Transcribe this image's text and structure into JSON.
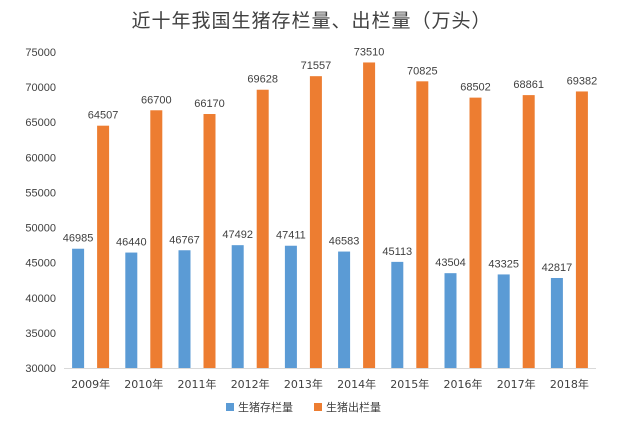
{
  "chart_data": {
    "type": "bar",
    "title": "近十年我国生猪存栏量、出栏量（万头）",
    "categories": [
      "2009年",
      "2010年",
      "2011年",
      "2012年",
      "2013年",
      "2014年",
      "2015年",
      "2016年",
      "2017年",
      "2018年"
    ],
    "series": [
      {
        "name": "生猪存栏量",
        "color": "#5b9bd5",
        "values": [
          46985,
          46440,
          46767,
          47492,
          47411,
          46583,
          45113,
          43504,
          43325,
          42817
        ]
      },
      {
        "name": "生猪出栏量",
        "color": "#ed7d31",
        "values": [
          64507,
          66700,
          66170,
          69628,
          71557,
          73510,
          70825,
          68502,
          68861,
          69382
        ]
      }
    ],
    "ylim": [
      30000,
      75000
    ],
    "yticks": [
      30000,
      35000,
      40000,
      45000,
      50000,
      55000,
      60000,
      65000,
      70000,
      75000
    ],
    "grid": false,
    "legend_position": "bottom",
    "data_labels": true,
    "xlabel": "",
    "ylabel": ""
  }
}
